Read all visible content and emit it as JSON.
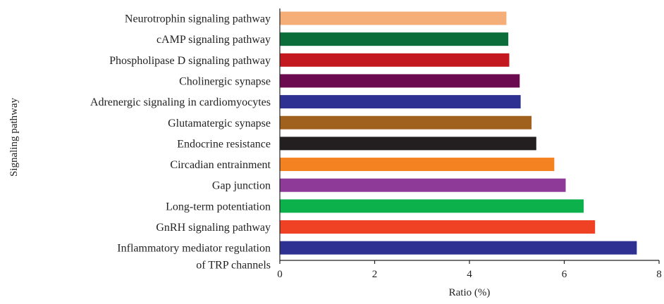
{
  "chart_data": {
    "type": "bar",
    "orientation": "horizontal",
    "xlabel": "Ratio (%)",
    "ylabel": "Signaling pathway",
    "xlim": [
      0,
      8
    ],
    "xticks": [
      "0",
      "2",
      "4",
      "6",
      "8"
    ],
    "grid": false,
    "categories": [
      "Neurotrophin signaling pathway",
      "cAMP signaling pathway",
      "Phospholipase D signaling pathway",
      "Cholinergic synapse",
      "Adrenergic signaling in cardiomyocytes",
      "Glutamatergic synapse",
      "Endocrine resistance",
      "Circadian entrainment",
      "Gap junction",
      "Long-term potentiation",
      "GnRH signaling pathway",
      "Inflammatory mediator regulation of TRP channels"
    ],
    "label_lines": [
      [
        "Neurotrophin signaling pathway"
      ],
      [
        "cAMP signaling pathway"
      ],
      [
        "Phospholipase D signaling pathway"
      ],
      [
        "Cholinergic synapse"
      ],
      [
        "Adrenergic signaling in cardiomyocytes"
      ],
      [
        "Glutamatergic synapse"
      ],
      [
        "Endocrine resistance"
      ],
      [
        "Circadian entrainment"
      ],
      [
        "Gap junction"
      ],
      [
        "Long-term potentiation"
      ],
      [
        "GnRH signaling pathway"
      ],
      [
        "Inflammatory mediator regulation",
        "of TRP channels"
      ]
    ],
    "values": [
      4.78,
      4.82,
      4.84,
      5.06,
      5.08,
      5.31,
      5.41,
      5.79,
      6.03,
      6.41,
      6.65,
      7.53
    ],
    "colors": [
      "#f6ae78",
      "#0b6d3a",
      "#c3181f",
      "#6b0a4f",
      "#2e3192",
      "#a0611f",
      "#231f20",
      "#f58220",
      "#8e3a98",
      "#0db14b",
      "#ef4123",
      "#2e3192"
    ]
  }
}
